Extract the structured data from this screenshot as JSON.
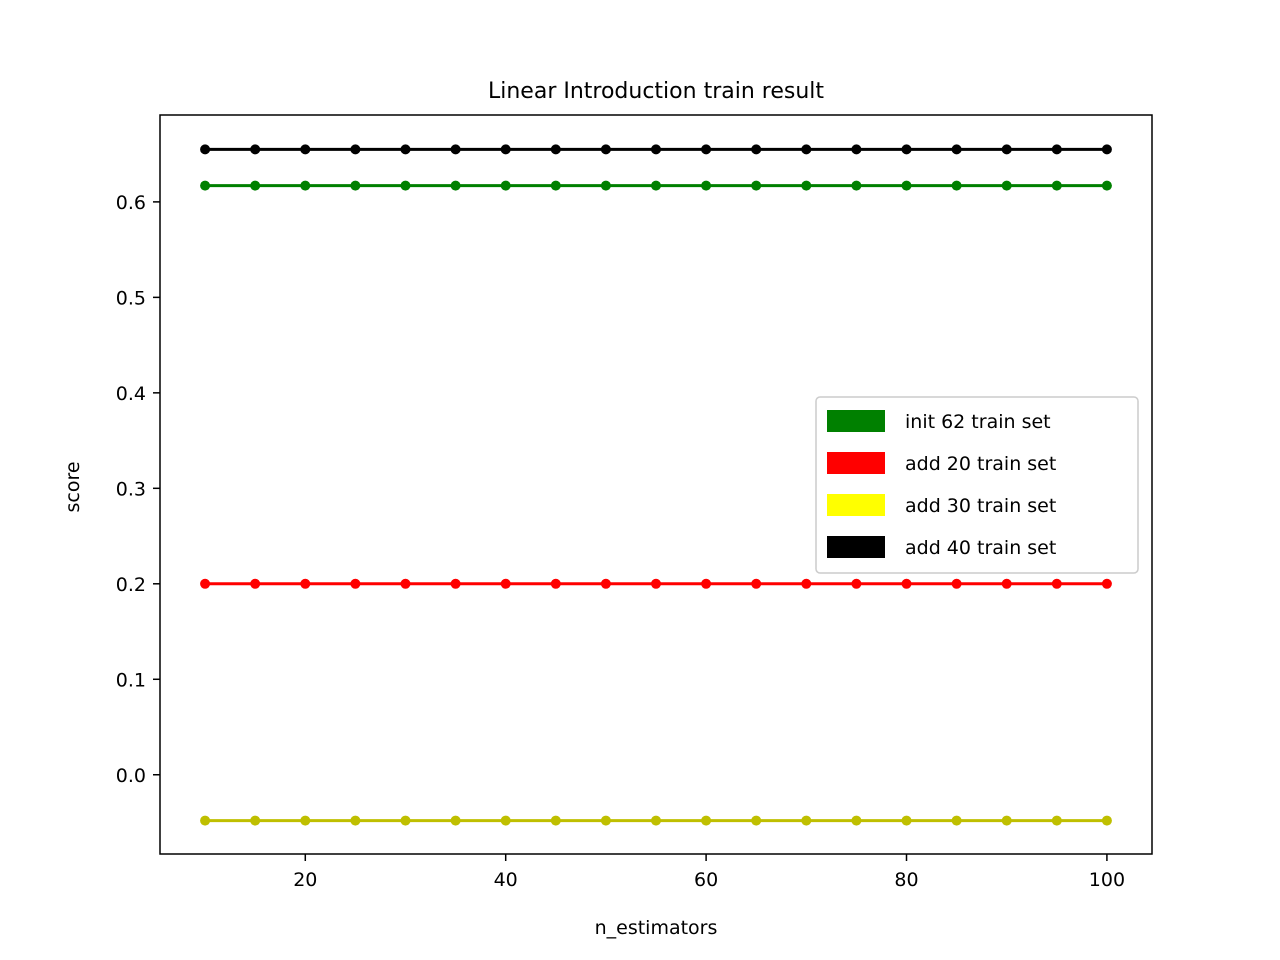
{
  "chart_data": {
    "type": "line",
    "title": "Linear Introduction train result",
    "xlabel": "n_estimators",
    "ylabel": "score",
    "x": [
      10,
      15,
      20,
      25,
      30,
      35,
      40,
      45,
      50,
      55,
      60,
      65,
      70,
      75,
      80,
      85,
      90,
      95,
      100
    ],
    "xlim": [
      5.5,
      104.5
    ],
    "ylim": [
      -0.083,
      0.691
    ],
    "x_ticks": [
      20,
      40,
      60,
      80,
      100
    ],
    "x_tick_labels": [
      "20",
      "40",
      "60",
      "80",
      "100"
    ],
    "y_ticks": [
      0.0,
      0.1,
      0.2,
      0.3,
      0.4,
      0.5,
      0.6
    ],
    "y_tick_labels": [
      "0.0",
      "0.1",
      "0.2",
      "0.3",
      "0.4",
      "0.5",
      "0.6"
    ],
    "grid": false,
    "legend_position": "center-right",
    "series": [
      {
        "color": "#008000",
        "marker": "point",
        "values": [
          0.617,
          0.617,
          0.617,
          0.617,
          0.617,
          0.617,
          0.617,
          0.617,
          0.617,
          0.617,
          0.617,
          0.617,
          0.617,
          0.617,
          0.617,
          0.617,
          0.617,
          0.617,
          0.617
        ]
      },
      {
        "color": "#ff0000",
        "marker": "point",
        "values": [
          0.2,
          0.2,
          0.2,
          0.2,
          0.2,
          0.2,
          0.2,
          0.2,
          0.2,
          0.2,
          0.2,
          0.2,
          0.2,
          0.2,
          0.2,
          0.2,
          0.2,
          0.2,
          0.2
        ]
      },
      {
        "color": "#bfbf00",
        "marker": "point",
        "values": [
          -0.048,
          -0.048,
          -0.048,
          -0.048,
          -0.048,
          -0.048,
          -0.048,
          -0.048,
          -0.048,
          -0.048,
          -0.048,
          -0.048,
          -0.048,
          -0.048,
          -0.048,
          -0.048,
          -0.048,
          -0.048,
          -0.048
        ]
      },
      {
        "color": "#000000",
        "marker": "point",
        "values": [
          0.655,
          0.655,
          0.655,
          0.655,
          0.655,
          0.655,
          0.655,
          0.655,
          0.655,
          0.655,
          0.655,
          0.655,
          0.655,
          0.655,
          0.655,
          0.655,
          0.655,
          0.655,
          0.655
        ]
      }
    ],
    "legend": [
      {
        "label": "init 62 train set",
        "color": "#008000"
      },
      {
        "label": "add 20 train set",
        "color": "#ff0000"
      },
      {
        "label": "add 30 train set",
        "color": "#ffff00"
      },
      {
        "label": "add 40 train set",
        "color": "#000000"
      }
    ]
  }
}
